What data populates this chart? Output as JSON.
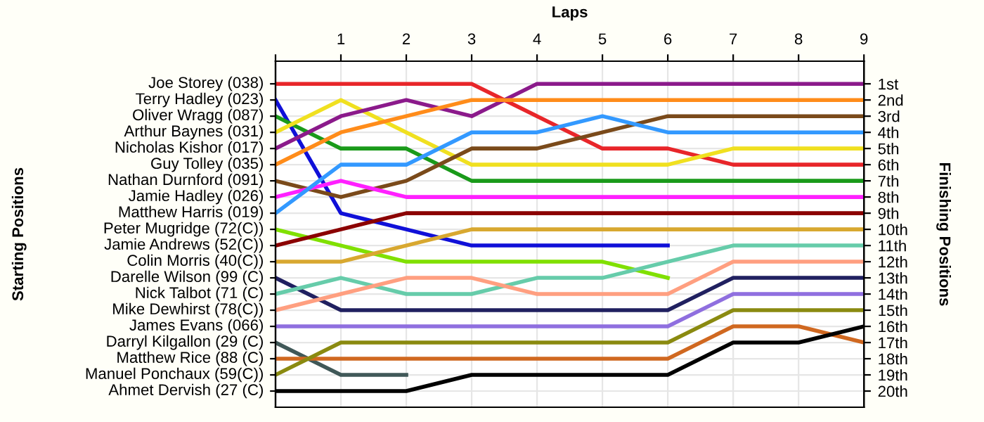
{
  "chart_data": {
    "type": "line",
    "xlabel": "Laps",
    "y2label": "Finishing Positions",
    "x": [
      0,
      1,
      2,
      3,
      4,
      5,
      6,
      7,
      8,
      9
    ],
    "xlim": [
      0,
      9
    ],
    "xticks": [
      {
        "value": 0,
        "label": null
      },
      1,
      2,
      3,
      4,
      5,
      6,
      7,
      8,
      9
    ],
    "annotations": [
      "Joe Storey (038)",
      "Terry Hadley (023)",
      "Oliver Wragg (087)",
      "Arthur Baynes (031)",
      "Nicholas Kishor (017)",
      "Guy Tolley (035)",
      "Nathan Durnford (091)",
      "Jamie Hadley (026)",
      "Matthew Harris (019)",
      "Peter Mugridge (72(C))",
      "Jamie Andrews (52(C))",
      "Colin Morris (40(C))",
      "Darelle Wilson (99 (C)",
      "Nick Talbot (71 (C)",
      "Mike Dewhirst (78(C))",
      "James Evans (066)",
      "Darryl Kilgallon (29 (C)",
      "Matthew Rice (88 (C)",
      "Manuel Ponchaux (59(C))",
      "Ahmet Dervish (27 (C)",
      "Starting Positions"
    ],
    "y2lim": [
      21,
      -0.4
    ],
    "y2ticks": [
      {
        "value": 1,
        "label": "1st"
      },
      {
        "value": 2,
        "label": "2nd"
      },
      {
        "value": 3,
        "label": "3rd"
      },
      {
        "value": 4,
        "label": "4th"
      },
      {
        "value": 5,
        "label": "5th"
      },
      {
        "value": 6,
        "label": "6th"
      },
      {
        "value": 7,
        "label": "7th"
      },
      {
        "value": 8,
        "label": "8th"
      },
      {
        "value": 9,
        "label": "9th"
      },
      {
        "value": 10,
        "label": "10th"
      },
      {
        "value": 11,
        "label": "11th"
      },
      {
        "value": 12,
        "label": "12th"
      },
      {
        "value": 13,
        "label": "13th"
      },
      {
        "value": 14,
        "label": "14th"
      },
      {
        "value": 15,
        "label": "15th"
      },
      {
        "value": 16,
        "label": "16th"
      },
      {
        "value": 17,
        "label": "17th"
      },
      {
        "value": 18,
        "label": "18th"
      },
      {
        "value": 19,
        "label": "19th"
      },
      {
        "value": 20,
        "label": "20th"
      }
    ],
    "grid": true,
    "marker": "none",
    "line_style": "solid",
    "series": [
      {
        "axis": "y2",
        "color": "#e8262a",
        "values": [
          1,
          1,
          1,
          1,
          3,
          5,
          5,
          6,
          6,
          6
        ]
      },
      {
        "axis": "y2",
        "color": "#1010d8",
        "values": [
          2,
          9,
          10,
          11,
          11,
          11,
          11,
          null,
          null,
          null
        ]
      },
      {
        "axis": "y2",
        "color": "#1a9a1a",
        "values": [
          3,
          5,
          5,
          7,
          7,
          7,
          7,
          7,
          7,
          7
        ]
      },
      {
        "axis": "y2",
        "color": "#f0e020",
        "values": [
          4,
          2,
          4,
          6,
          6,
          6,
          6,
          5,
          5,
          5
        ]
      },
      {
        "axis": "y2",
        "color": "#8b1a8b",
        "values": [
          5,
          3,
          2,
          3,
          1,
          1,
          1,
          1,
          1,
          1
        ]
      },
      {
        "axis": "y2",
        "color": "#ff8c1a",
        "values": [
          6,
          4,
          3,
          2,
          2,
          2,
          2,
          2,
          2,
          2
        ]
      },
      {
        "axis": "y2",
        "color": "#7a4a1a",
        "values": [
          7,
          8,
          7,
          5,
          5,
          4,
          3,
          3,
          3,
          3
        ]
      },
      {
        "axis": "y2",
        "color": "#ff20ff",
        "values": [
          8,
          7,
          8,
          8,
          8,
          8,
          8,
          8,
          8,
          8
        ]
      },
      {
        "axis": "y2",
        "color": "#3399ff",
        "values": [
          9,
          6,
          6,
          4,
          4,
          3,
          4,
          4,
          4,
          4
        ]
      },
      {
        "axis": "y2",
        "color": "#80e000",
        "values": [
          10,
          11,
          12,
          12,
          12,
          12,
          13,
          null,
          null,
          null
        ]
      },
      {
        "axis": "y2",
        "color": "#8b0000",
        "values": [
          11,
          10,
          9,
          9,
          9,
          9,
          9,
          9,
          9,
          9
        ]
      },
      {
        "axis": "y2",
        "color": "#d8a830",
        "values": [
          12,
          12,
          11,
          10,
          10,
          10,
          10,
          10,
          10,
          10
        ]
      },
      {
        "axis": "y2",
        "color": "#202060",
        "values": [
          13,
          15,
          15,
          15,
          15,
          15,
          15,
          13,
          13,
          13
        ]
      },
      {
        "axis": "y2",
        "color": "#66ccaa",
        "values": [
          14,
          13,
          14,
          14,
          13,
          13,
          12,
          11,
          11,
          11
        ]
      },
      {
        "axis": "y2",
        "color": "#ff9f80",
        "values": [
          15,
          14,
          13,
          13,
          14,
          14,
          14,
          12,
          12,
          12
        ]
      },
      {
        "axis": "y2",
        "color": "#8f6fdf",
        "values": [
          16,
          16,
          16,
          16,
          16,
          16,
          16,
          14,
          14,
          14
        ]
      },
      {
        "axis": "y2",
        "color": "#405858",
        "values": [
          17,
          19,
          19,
          null,
          null,
          null,
          null,
          null,
          null,
          null
        ]
      },
      {
        "axis": "y2",
        "color": "#d06820",
        "values": [
          18,
          18,
          18,
          18,
          18,
          18,
          18,
          16,
          16,
          17
        ]
      },
      {
        "axis": "y2",
        "color": "#8a8a10",
        "values": [
          19,
          17,
          17,
          17,
          17,
          17,
          17,
          15,
          15,
          15
        ]
      },
      {
        "axis": "y2",
        "color": "#000000",
        "values": [
          20,
          20,
          20,
          19,
          19,
          19,
          19,
          17,
          17,
          16
        ]
      }
    ]
  }
}
